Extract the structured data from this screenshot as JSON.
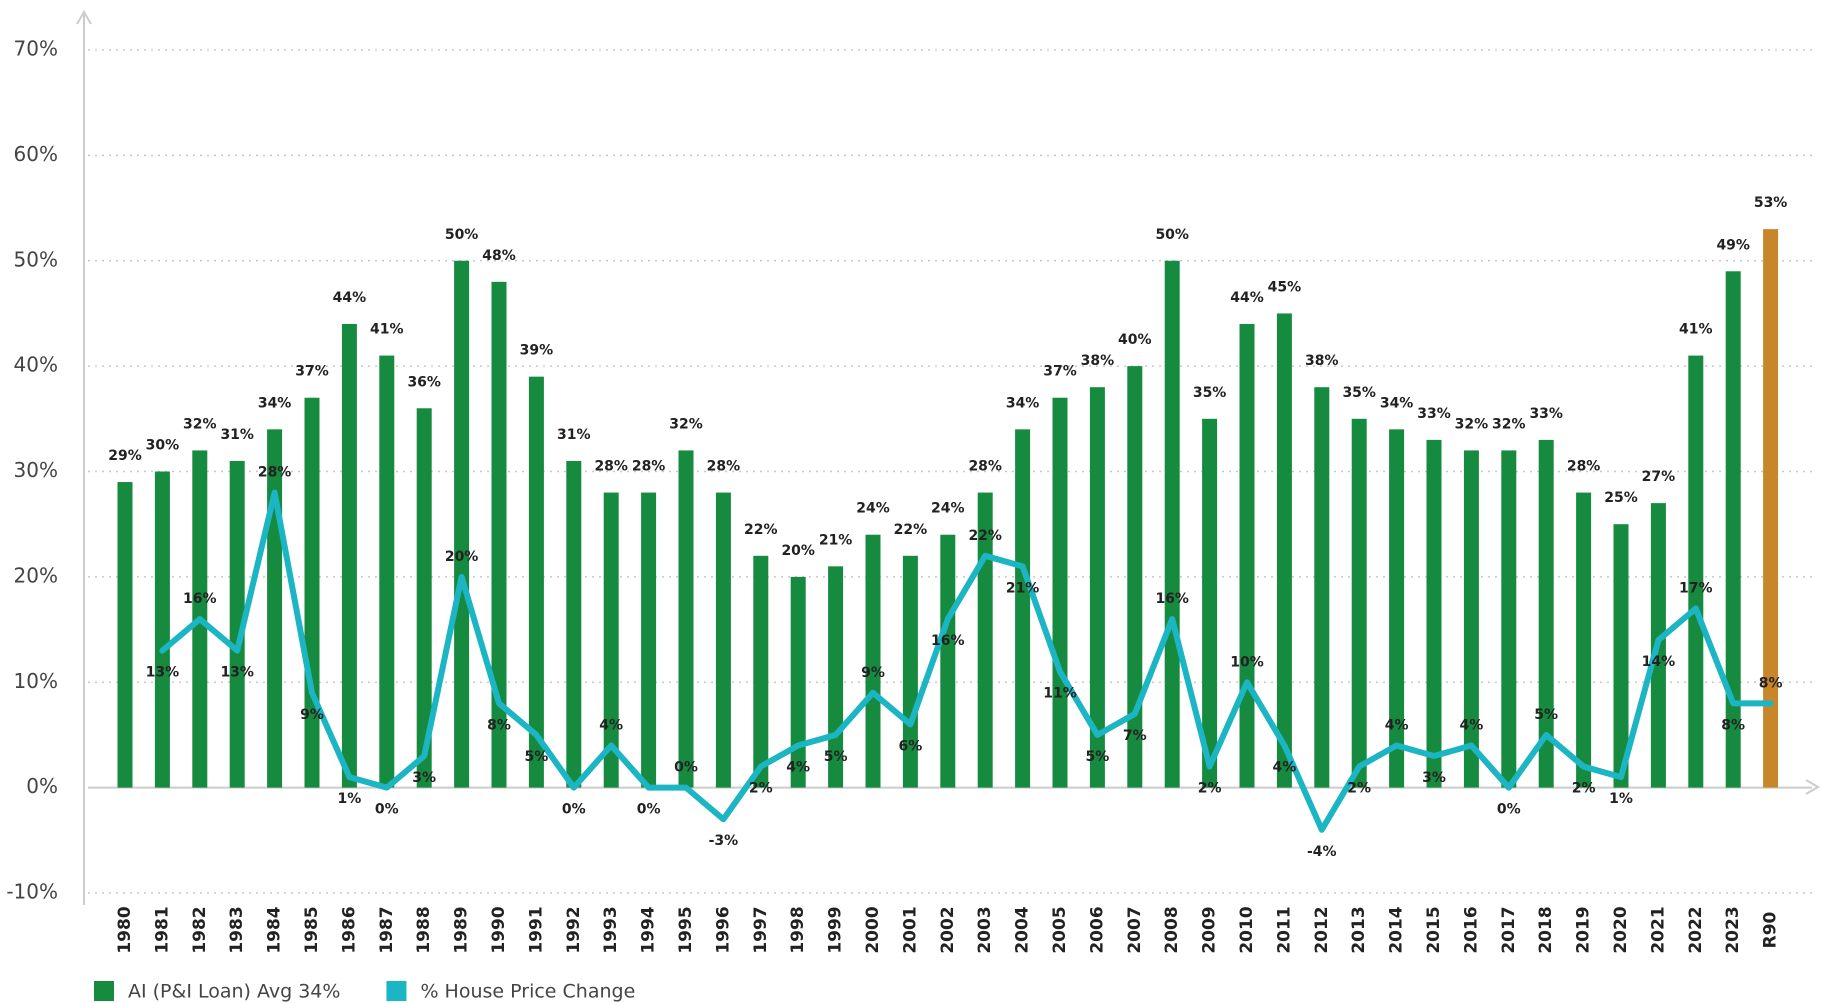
{
  "chart_data": {
    "type": "bar",
    "categories": [
      "1980",
      "1981",
      "1982",
      "1983",
      "1984",
      "1985",
      "1986",
      "1987",
      "1988",
      "1989",
      "1990",
      "1991",
      "1992",
      "1993",
      "1994",
      "1995",
      "1996",
      "1997",
      "1998",
      "1999",
      "2000",
      "2001",
      "2002",
      "2003",
      "2004",
      "2005",
      "2006",
      "2007",
      "2008",
      "2009",
      "2010",
      "2011",
      "2012",
      "2013",
      "2014",
      "2015",
      "2016",
      "2017",
      "2018",
      "2019",
      "2020",
      "2021",
      "2022",
      "2023",
      "R90"
    ],
    "series": [
      {
        "name": "AI (P&I Loan) Avg 34%",
        "type": "bar",
        "color": "#168a3f",
        "highlight_color": "#c8862a",
        "values": [
          29,
          30,
          32,
          31,
          34,
          37,
          44,
          41,
          36,
          50,
          48,
          39,
          31,
          28,
          28,
          32,
          28,
          22,
          20,
          21,
          24,
          22,
          24,
          28,
          34,
          37,
          38,
          40,
          50,
          35,
          44,
          45,
          38,
          35,
          34,
          33,
          32,
          32,
          33,
          28,
          25,
          27,
          41,
          49,
          53
        ],
        "value_labels": [
          "29%",
          "30%",
          "32%",
          "31%",
          "34%",
          "37%",
          "44%",
          "41%",
          "36%",
          "50%",
          "48%",
          "39%",
          "31%",
          "28%",
          "28%",
          "32%",
          "28%",
          "22%",
          "20%",
          "21%",
          "24%",
          "22%",
          "24%",
          "28%",
          "34%",
          "37%",
          "38%",
          "40%",
          "50%",
          "35%",
          "44%",
          "45%",
          "38%",
          "35%",
          "34%",
          "33%",
          "32%",
          "32%",
          "33%",
          "28%",
          "25%",
          "27%",
          "41%",
          "49%",
          "53%"
        ]
      },
      {
        "name": "% House Price Change",
        "type": "line",
        "color": "#1bb5c4",
        "values": [
          null,
          13,
          16,
          13,
          28,
          9,
          1,
          0,
          3,
          20,
          8,
          5,
          0,
          4,
          0,
          0,
          -3,
          2,
          4,
          5,
          9,
          6,
          16,
          22,
          21,
          11,
          5,
          7,
          16,
          2,
          10,
          4,
          -4,
          2,
          4,
          3,
          4,
          0,
          5,
          2,
          1,
          14,
          17,
          8,
          8
        ],
        "value_labels": [
          null,
          "13%",
          "16%",
          "13%",
          "28%",
          "9%",
          "1%",
          "0%",
          "3%",
          "20%",
          "8%",
          "5%",
          "0%",
          "4%",
          "0%",
          "0%",
          "-3%",
          "2%",
          "4%",
          "5%",
          "9%",
          "6%",
          "16%",
          "22%",
          "21%",
          "11%",
          "5%",
          "7%",
          "16%",
          "2%",
          "10%",
          "4%",
          "-4%",
          "2%",
          "4%",
          "3%",
          "4%",
          "0%",
          "5%",
          "2%",
          "1%",
          "14%",
          "17%",
          "8%",
          "8%"
        ]
      }
    ],
    "ylim": [
      -10,
      70
    ],
    "yticks": [
      {
        "value": -10,
        "label": "-10%"
      },
      {
        "value": 0,
        "label": "0%"
      },
      {
        "value": 10,
        "label": "10%"
      },
      {
        "value": 20,
        "label": "20%"
      },
      {
        "value": 30,
        "label": "30%"
      },
      {
        "value": 40,
        "label": "40%"
      },
      {
        "value": 50,
        "label": "50%"
      },
      {
        "value": 60,
        "label": "60%"
      },
      {
        "value": 70,
        "label": "70%"
      }
    ],
    "grid": true,
    "legend": "bottom-left"
  }
}
